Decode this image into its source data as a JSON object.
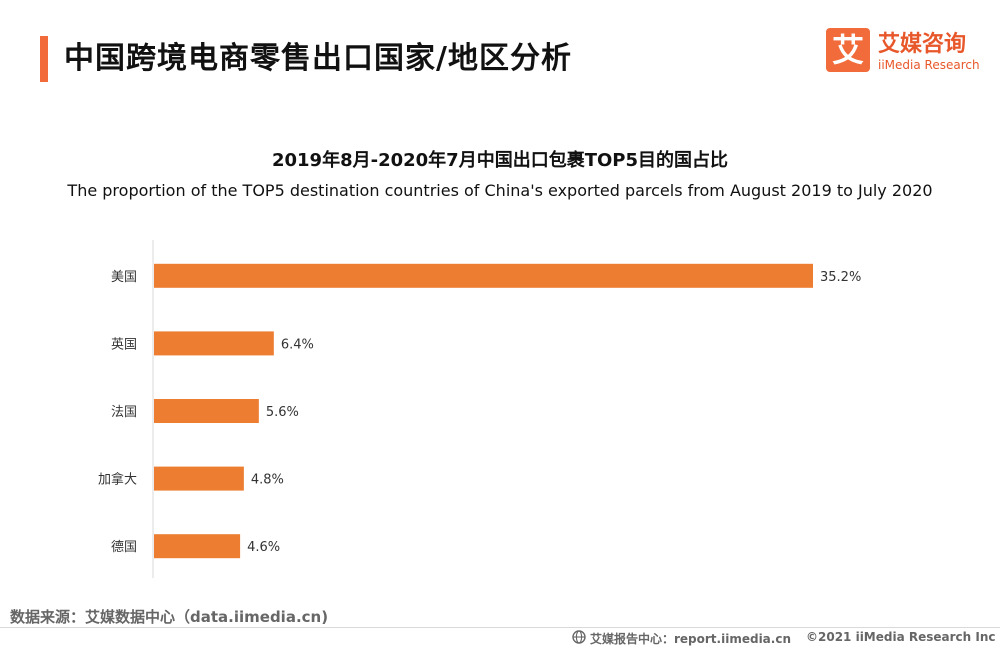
{
  "header": {
    "title": "中国跨境电商零售出口国家/地区分析",
    "logo_mark": "艾",
    "logo_cn": "艾媒咨询",
    "logo_en": "iiMedia Research"
  },
  "chart_data": {
    "type": "bar",
    "orientation": "horizontal",
    "title": "2019年8月-2020年7月中国出口包裹TOP5目的国占比",
    "subtitle": "The proportion of the TOP5 destination countries of China's exported parcels from August 2019 to July 2020",
    "categories": [
      "美国",
      "英国",
      "法国",
      "加拿大",
      "德国"
    ],
    "values": [
      35.2,
      6.4,
      5.6,
      4.8,
      4.6
    ],
    "value_labels": [
      "35.2%",
      "6.4%",
      "5.6%",
      "4.8%",
      "4.6%"
    ],
    "unit": "%",
    "bar_color": "#ed7d31",
    "grid": false,
    "legend": "none"
  },
  "footer": {
    "source": "数据来源：艾媒数据中心（data.iimedia.cn)",
    "report": "艾媒报告中心：report.iimedia.cn",
    "copyright": "©2021  iiMedia Research  Inc"
  },
  "colors": {
    "accent": "#f26b3a",
    "bar": "#ed7d31",
    "text": "#222222"
  }
}
